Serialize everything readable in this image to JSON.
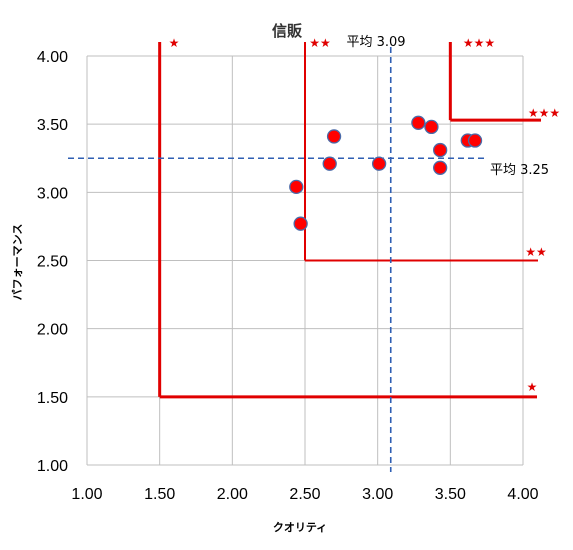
{
  "chart_data": {
    "type": "scatter",
    "title": "信販",
    "xlabel": "クオリティ",
    "ylabel": "パフォーマンス",
    "xlim": [
      1.0,
      4.0
    ],
    "ylim": [
      1.0,
      4.0
    ],
    "x_ticks": [
      "1.00",
      "1.50",
      "2.00",
      "2.50",
      "3.00",
      "3.50",
      "4.00"
    ],
    "y_ticks": [
      "1.00",
      "1.50",
      "2.00",
      "2.50",
      "3.00",
      "3.50",
      "4.00"
    ],
    "grid": true,
    "points": [
      {
        "x": 2.44,
        "y": 3.04
      },
      {
        "x": 2.47,
        "y": 2.77
      },
      {
        "x": 2.67,
        "y": 3.21
      },
      {
        "x": 2.7,
        "y": 3.41
      },
      {
        "x": 3.01,
        "y": 3.21
      },
      {
        "x": 3.28,
        "y": 3.51
      },
      {
        "x": 3.37,
        "y": 3.48
      },
      {
        "x": 3.43,
        "y": 3.31
      },
      {
        "x": 3.43,
        "y": 3.18
      },
      {
        "x": 3.62,
        "y": 3.38
      },
      {
        "x": 3.67,
        "y": 3.38
      }
    ],
    "averages": {
      "x": {
        "value": 3.09,
        "label": "平均 3.09"
      },
      "y": {
        "value": 3.25,
        "label": "平均 3.25"
      }
    },
    "zones": [
      {
        "x": 1.5,
        "y": 1.5,
        "label": "★"
      },
      {
        "x": 2.5,
        "y": 2.5,
        "label": "★★"
      },
      {
        "x": 3.5,
        "y": 3.53,
        "label": "★★★"
      }
    ],
    "colors": {
      "point_fill": "#ff0000",
      "point_stroke": "#4a6aa8",
      "zone_line": "#e00000",
      "average_line": "#2f5fb3",
      "grid": "#bfbfbf",
      "star": "#e00000"
    }
  }
}
